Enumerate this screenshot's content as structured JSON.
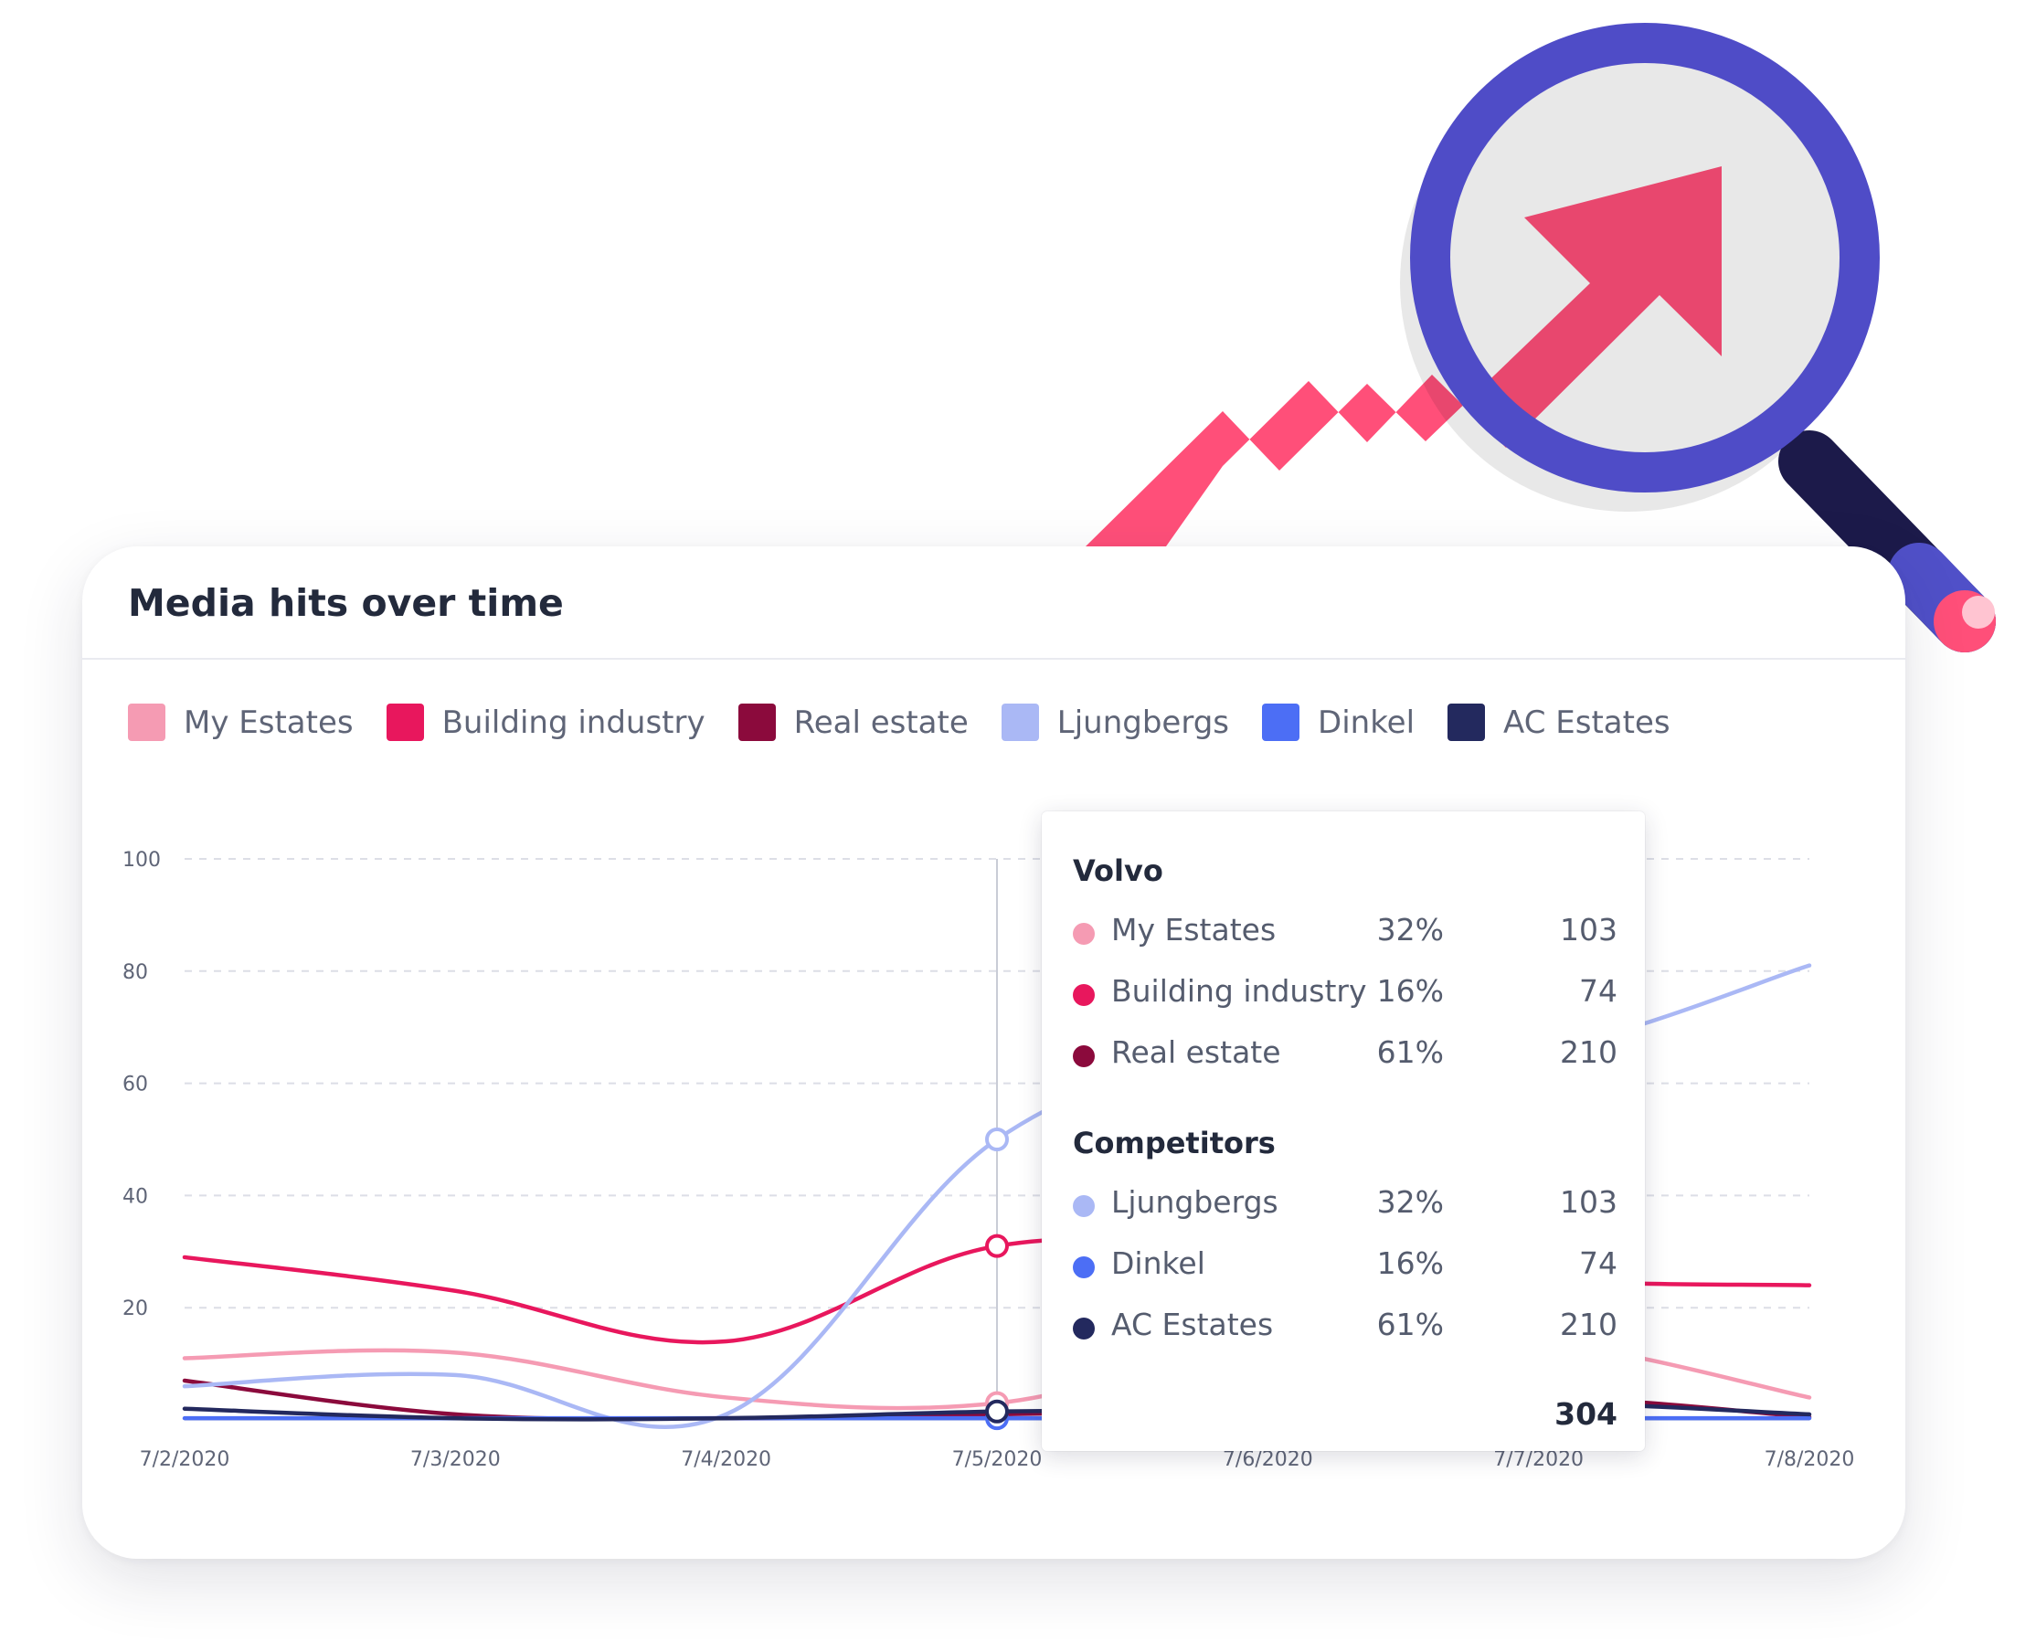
{
  "card": {
    "title": "Media hits over time"
  },
  "chart_data": {
    "type": "line",
    "title": "Media hits over time",
    "x": [
      "7/2/2020",
      "7/3/2020",
      "7/4/2020",
      "7/5/2020",
      "7/6/2020",
      "7/7/2020",
      "7/8/2020"
    ],
    "ylim": [
      0,
      100
    ],
    "yticks": [
      20,
      40,
      60,
      80,
      100
    ],
    "grid": true,
    "legend_position": "top",
    "series": [
      {
        "name": "My Estates",
        "color": "#f59bb3",
        "values": [
          11,
          12,
          4,
          3,
          14,
          14,
          4
        ]
      },
      {
        "name": "Building industry",
        "color": "#e8175d",
        "values": [
          29,
          23,
          14,
          31,
          30,
          25,
          24
        ]
      },
      {
        "name": "Real estate",
        "color": "#8b0a3c",
        "values": [
          7,
          1,
          0.3,
          1,
          2,
          4,
          0.5
        ]
      },
      {
        "name": "Ljungbergs",
        "color": "#aab8f5",
        "values": [
          6,
          8,
          1,
          50,
          66,
          66,
          81
        ]
      },
      {
        "name": "Dinkel",
        "color": "#4c6ef5",
        "values": [
          0.3,
          0.3,
          0.3,
          0.3,
          0.3,
          0.3,
          0.3
        ]
      },
      {
        "name": "AC Estates",
        "color": "#23295e",
        "values": [
          2,
          0.3,
          0.3,
          1.5,
          2,
          3,
          1
        ]
      }
    ],
    "hover_index": 3
  },
  "tooltip": {
    "group1_title": "Volvo",
    "group1": [
      {
        "label": "My Estates",
        "pct": "32%",
        "value": "103",
        "color": "#f59bb3"
      },
      {
        "label": "Building industry",
        "pct": "16%",
        "value": "74",
        "color": "#e8175d"
      },
      {
        "label": "Real estate",
        "pct": "61%",
        "value": "210",
        "color": "#8b0a3c"
      }
    ],
    "group2_title": "Competitors",
    "group2": [
      {
        "label": "Ljungbergs",
        "pct": "32%",
        "value": "103",
        "color": "#aab8f5"
      },
      {
        "label": "Dinkel",
        "pct": "16%",
        "value": "74",
        "color": "#4c6ef5"
      },
      {
        "label": "AC Estates",
        "pct": "61%",
        "value": "210",
        "color": "#23295e"
      }
    ],
    "total": "304"
  },
  "illustration": {
    "arrow_color": "#ff4f79",
    "magnifier_color": "#4f4cc7",
    "handle_color": "#1c1a4a"
  }
}
